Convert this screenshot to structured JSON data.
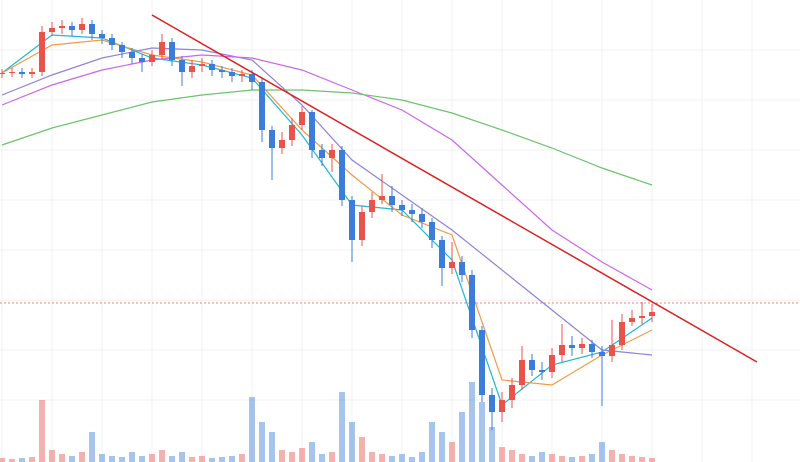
{
  "chart_data": {
    "type": "candlestick",
    "ylim": [
      0,
      462
    ],
    "y2lim": [
      0,
      462
    ],
    "xlim": [
      -0.2,
      79.8
    ],
    "yticks": [
      62,
      112,
      162,
      212,
      262,
      312,
      362,
      412
    ],
    "xticks": [
      0,
      5,
      10,
      15,
      20,
      25,
      30,
      35,
      40,
      45,
      50,
      55,
      60,
      65,
      70,
      75
    ],
    "grid": true,
    "up_color": "#e8534a",
    "down_color": "#3b7dd8",
    "candles": {
      "opens": [
        388,
        389,
        390,
        388,
        390,
        430,
        434,
        436,
        432,
        438,
        428,
        424,
        417,
        410,
        404,
        400,
        407,
        420,
        402,
        390,
        396,
        398,
        392,
        390,
        386,
        388,
        380,
        332,
        314,
        322,
        337,
        350,
        312,
        304,
        312,
        262,
        222,
        250,
        262,
        266,
        257,
        252,
        248,
        240,
        222,
        194,
        200,
        187,
        132,
        67,
        50,
        62,
        77,
        102,
        92,
        90,
        107,
        117,
        114,
        118,
        110,
        106,
        117,
        140,
        144,
        146
      ],
      "highs": [
        393,
        394,
        394,
        394,
        436,
        440,
        442,
        440,
        444,
        442,
        432,
        428,
        420,
        414,
        408,
        412,
        428,
        424,
        406,
        402,
        404,
        402,
        396,
        394,
        392,
        392,
        384,
        336,
        330,
        344,
        356,
        352,
        318,
        318,
        316,
        266,
        256,
        270,
        288,
        276,
        262,
        258,
        254,
        244,
        226,
        220,
        206,
        192,
        136,
        74,
        70,
        84,
        116,
        108,
        100,
        114,
        138,
        126,
        124,
        122,
        116,
        142,
        148,
        152,
        160,
        158
      ],
      "lows": [
        384,
        385,
        384,
        384,
        386,
        426,
        428,
        426,
        428,
        422,
        418,
        412,
        404,
        398,
        390,
        396,
        402,
        396,
        376,
        384,
        390,
        386,
        384,
        380,
        380,
        372,
        320,
        282,
        308,
        316,
        332,
        304,
        296,
        290,
        256,
        200,
        216,
        244,
        258,
        250,
        246,
        240,
        234,
        214,
        176,
        188,
        180,
        124,
        60,
        32,
        40,
        54,
        72,
        86,
        82,
        84,
        100,
        106,
        108,
        104,
        56,
        100,
        112,
        136,
        138,
        140
      ],
      "closes": [
        389,
        390,
        388,
        390,
        430,
        434,
        436,
        432,
        438,
        428,
        424,
        417,
        410,
        404,
        400,
        407,
        420,
        402,
        390,
        396,
        398,
        392,
        390,
        386,
        388,
        380,
        332,
        314,
        322,
        337,
        350,
        312,
        304,
        312,
        262,
        222,
        250,
        262,
        266,
        257,
        252,
        248,
        240,
        222,
        194,
        200,
        187,
        132,
        67,
        50,
        62,
        77,
        102,
        92,
        90,
        107,
        117,
        114,
        118,
        110,
        106,
        117,
        140,
        144,
        146,
        150
      ]
    },
    "volume": [
      4,
      3,
      4,
      5,
      62,
      12,
      8,
      6,
      10,
      30,
      8,
      6,
      5,
      10,
      6,
      8,
      12,
      6,
      10,
      5,
      6,
      4,
      5,
      6,
      8,
      65,
      40,
      30,
      12,
      10,
      14,
      20,
      8,
      10,
      70,
      40,
      25,
      10,
      8,
      6,
      8,
      5,
      10,
      40,
      30,
      20,
      50,
      80,
      60,
      35,
      15,
      12,
      8,
      6,
      10,
      8,
      6,
      5,
      6,
      8,
      20,
      12,
      8,
      6,
      5,
      4
    ],
    "series": [
      {
        "color": "#1fb8d8",
        "x": [
          0,
          5,
          10,
          15,
          20,
          25,
          30,
          35,
          40,
          45,
          50,
          55,
          60,
          65
        ],
        "values": [
          389,
          427,
          424,
          404,
          397,
          384,
          327,
          257,
          252,
          202,
          57,
          97,
          110,
          144
        ]
      },
      {
        "color": "#f29a4a",
        "x": [
          0,
          5,
          10,
          15,
          20,
          25,
          30,
          35,
          40,
          45,
          50,
          55,
          60,
          65
        ],
        "values": [
          389,
          417,
          422,
          407,
          400,
          387,
          332,
          287,
          247,
          227,
          82,
          77,
          107,
          132
        ]
      },
      {
        "color": "#8f83dc",
        "x": [
          0,
          5,
          10,
          15,
          20,
          25,
          30,
          35,
          40,
          45,
          50,
          55,
          60,
          65
        ],
        "values": [
          367,
          387,
          404,
          414,
          412,
          402,
          357,
          302,
          267,
          232,
          192,
          152,
          112,
          107
        ]
      },
      {
        "color": "#cc66ee",
        "x": [
          0,
          5,
          10,
          15,
          20,
          25,
          30,
          35,
          40,
          45,
          50,
          55,
          60,
          65
        ],
        "values": [
          357,
          377,
          392,
          402,
          407,
          404,
          392,
          372,
          352,
          322,
          277,
          232,
          200,
          172
        ]
      },
      {
        "color": "#6cc46c",
        "x": [
          0,
          5,
          10,
          15,
          20,
          25,
          30,
          35,
          40,
          45,
          50,
          55,
          60,
          65
        ],
        "values": [
          317,
          334,
          347,
          360,
          367,
          372,
          372,
          369,
          362,
          349,
          332,
          314,
          294,
          277
        ]
      }
    ],
    "trendline": {
      "color": "#e02020",
      "x": [
        15,
        75.5
      ],
      "values": [
        447,
        100
      ]
    },
    "price_line": {
      "color": "#f08080",
      "value": 159
    }
  }
}
